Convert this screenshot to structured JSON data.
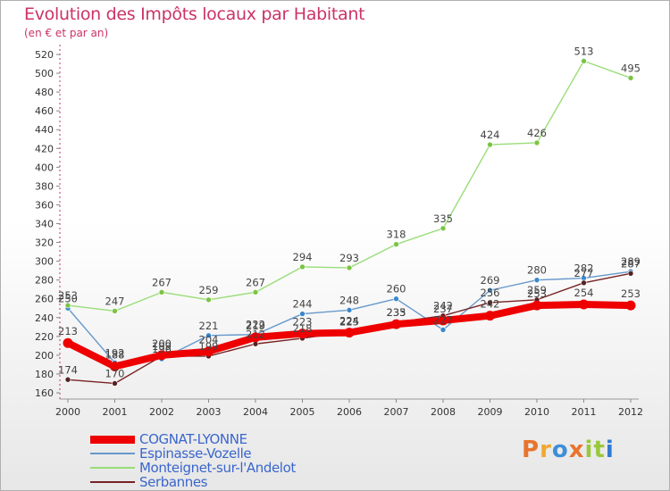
{
  "header": {
    "title": "Evolution des Impôts locaux par Habitant",
    "subtitle": "(en € et par an)"
  },
  "brand": {
    "logo_text": "Proxiti",
    "logo_colors": [
      "#e8742c",
      "#f0a830",
      "#3d8fd8",
      "#e8742c",
      "#9ac83c",
      "#9ac83c",
      "#2f79d1"
    ]
  },
  "chart_data": {
    "type": "line",
    "title": "Evolution des Impôts locaux par Habitant",
    "subtitle": "(en € et par an)",
    "xlabel": "",
    "ylabel": "",
    "x": [
      "2000",
      "2001",
      "2002",
      "2003",
      "2004",
      "2005",
      "2006",
      "2007",
      "2008",
      "2009",
      "2010",
      "2011",
      "2012"
    ],
    "ylim": [
      160,
      520
    ],
    "yticks": [
      160,
      180,
      200,
      220,
      240,
      260,
      280,
      300,
      320,
      340,
      360,
      380,
      400,
      420,
      440,
      460,
      480,
      500,
      520
    ],
    "grid": false,
    "legend_position": "bottom-left",
    "series": [
      {
        "name": "COGNAT-LYONNE",
        "color": "#ee0000",
        "marker_color": "#ee0000",
        "values": [
          213,
          188,
          200,
          204,
          219,
          223,
          224,
          233,
          237,
          242,
          253,
          254,
          253
        ],
        "labels": [
          "213",
          "188",
          "200",
          "204",
          "219",
          "223",
          "224",
          "233",
          "237",
          "242",
          "253",
          "254",
          "253"
        ],
        "thick": true
      },
      {
        "name": "Espinasse-Vozelle",
        "color": "#6699cc",
        "marker_color": "#3a88cc",
        "values": [
          250,
          192,
          196,
          221,
          222,
          244,
          248,
          260,
          227,
          269,
          280,
          282,
          289
        ],
        "labels": [
          "250",
          "192",
          "196",
          "221",
          "222",
          "244",
          "248",
          "260",
          "227",
          "269",
          "280",
          "282",
          "289"
        ],
        "thick": false
      },
      {
        "name": "Monteignet-sur-l'Andelot",
        "color": "#99dd77",
        "marker_color": "#7cc444",
        "values": [
          253,
          247,
          267,
          259,
          267,
          294,
          293,
          318,
          335,
          424,
          426,
          513,
          495
        ],
        "labels": [
          "253",
          "247",
          "267",
          "259",
          "267",
          "294",
          "293",
          "318",
          "335",
          "424",
          "426",
          "513",
          "495"
        ],
        "thick": false
      },
      {
        "name": "Serbannes",
        "color": "#772222",
        "marker_color": "#552222",
        "values": [
          174,
          170,
          199,
          199,
          212,
          218,
          225,
          235,
          242,
          256,
          259,
          277,
          287
        ],
        "labels": [
          "174",
          "170",
          "199",
          "199",
          "212",
          "218",
          "225",
          "235",
          "242",
          "256",
          "259",
          "277",
          "287"
        ],
        "thick": false
      }
    ]
  }
}
